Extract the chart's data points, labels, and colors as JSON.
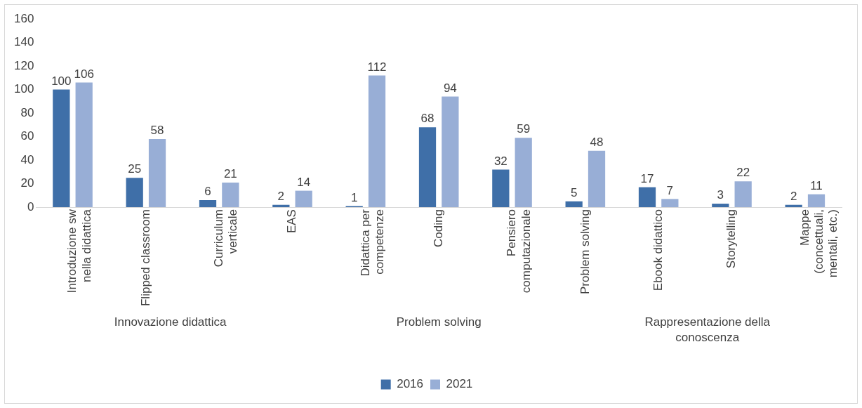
{
  "chart_data": {
    "type": "bar",
    "categories": [
      "Introduzione sw nella didattica",
      "Flipped classroom",
      "Curriculum verticale",
      "EAS",
      "Didattica per competenze",
      "Coding",
      "Pensiero computazionale",
      "Problem solving",
      "Ebook didattico",
      "Storytelling",
      "Mappe (concettuali, mentali, etc.)"
    ],
    "series": [
      {
        "name": "2016",
        "color": "#3f6fa8",
        "values": [
          100,
          25,
          6,
          2,
          1,
          68,
          32,
          5,
          17,
          3,
          2
        ]
      },
      {
        "name": "2021",
        "color": "#98aed6",
        "values": [
          106,
          58,
          21,
          14,
          112,
          94,
          59,
          48,
          7,
          22,
          11
        ]
      }
    ],
    "ylim": [
      0,
      160
    ],
    "yticks": [
      0,
      20,
      40,
      60,
      80,
      100,
      120,
      140,
      160
    ],
    "grid": false,
    "legend": "bottom",
    "data_labels": true,
    "annotations": [
      "Innovazione didattica",
      "Problem solving",
      "Rappresentazione della conoscenza"
    ]
  }
}
